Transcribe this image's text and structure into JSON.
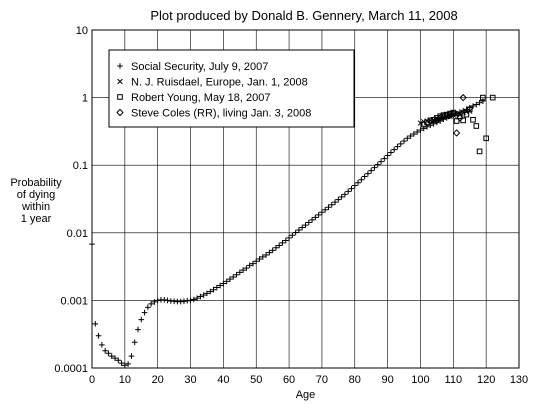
{
  "chart_data": {
    "type": "scatter",
    "title": "Plot produced by Donald B. Gennery, March 11, 2008",
    "xlabel": "Age",
    "ylabel": [
      "Probability",
      "of dying",
      "within",
      "1 year"
    ],
    "xlim": [
      0,
      130
    ],
    "ylim": [
      0.0001,
      10
    ],
    "yscale": "log",
    "x_ticks": [
      0,
      10,
      20,
      30,
      40,
      50,
      60,
      70,
      80,
      90,
      100,
      110,
      120,
      130
    ],
    "y_ticks": [
      {
        "value": 0.0001,
        "label": "0.0001"
      },
      {
        "value": 0.001,
        "label": "0.001"
      },
      {
        "value": 0.01,
        "label": "0.01"
      },
      {
        "value": 0.1,
        "label": "0.1"
      },
      {
        "value": 1,
        "label": "1"
      },
      {
        "value": 10,
        "label": "10"
      }
    ],
    "grid": true,
    "legend_position": "top-left",
    "series": [
      {
        "name": "Social Security, July 9, 2007",
        "marker": "plus",
        "x": [
          0,
          1,
          2,
          3,
          4,
          5,
          6,
          7,
          8,
          9,
          10,
          11,
          12,
          13,
          14,
          15,
          16,
          17,
          18,
          19,
          20,
          21,
          22,
          23,
          24,
          25,
          26,
          27,
          28,
          29,
          30,
          31,
          32,
          33,
          34,
          35,
          36,
          37,
          38,
          39,
          40,
          41,
          42,
          43,
          44,
          45,
          46,
          47,
          48,
          49,
          50,
          51,
          52,
          53,
          54,
          55,
          56,
          57,
          58,
          59,
          60,
          61,
          62,
          63,
          64,
          65,
          66,
          67,
          68,
          69,
          70,
          71,
          72,
          73,
          74,
          75,
          76,
          77,
          78,
          79,
          80,
          81,
          82,
          83,
          84,
          85,
          86,
          87,
          88,
          89,
          90,
          91,
          92,
          93,
          94,
          95,
          96,
          97,
          98,
          99,
          100,
          101,
          102,
          103,
          104,
          105,
          106,
          107,
          108,
          109,
          110,
          111,
          112,
          113,
          114,
          115,
          116,
          117,
          118,
          119
        ],
        "y": [
          0.0068,
          0.00045,
          0.0003,
          0.00022,
          0.00018,
          0.000165,
          0.00015,
          0.00014,
          0.00013,
          0.000118,
          0.00011,
          0.000115,
          0.00015,
          0.00024,
          0.00037,
          0.00052,
          0.00066,
          0.00079,
          0.00089,
          0.00095,
          0.001,
          0.00102,
          0.00102,
          0.001,
          0.00098,
          0.00097,
          0.00096,
          0.00096,
          0.00097,
          0.00099,
          0.001,
          0.00103,
          0.00108,
          0.00114,
          0.0012,
          0.00127,
          0.00135,
          0.00144,
          0.00155,
          0.00166,
          0.00178,
          0.00191,
          0.00206,
          0.00222,
          0.0024,
          0.0026,
          0.0028,
          0.003,
          0.0033,
          0.0035,
          0.0038,
          0.0041,
          0.0044,
          0.0047,
          0.0051,
          0.0055,
          0.006,
          0.0065,
          0.0071,
          0.0077,
          0.0084,
          0.0092,
          0.0101,
          0.011,
          0.012,
          0.013,
          0.0142,
          0.0155,
          0.0169,
          0.0184,
          0.0201,
          0.0219,
          0.0239,
          0.026,
          0.0284,
          0.031,
          0.034,
          0.037,
          0.041,
          0.045,
          0.05,
          0.055,
          0.061,
          0.068,
          0.075,
          0.083,
          0.092,
          0.102,
          0.113,
          0.125,
          0.139,
          0.154,
          0.17,
          0.188,
          0.207,
          0.228,
          0.25,
          0.27,
          0.29,
          0.31,
          0.33,
          0.35,
          0.37,
          0.39,
          0.41,
          0.43,
          0.45,
          0.48,
          0.5,
          0.53,
          0.55,
          0.58,
          0.61,
          0.64,
          0.67,
          0.71,
          0.75,
          0.79,
          0.84,
          0.89
        ]
      },
      {
        "name": "N. J. Ruisdael, Europe, Jan. 1, 2008",
        "marker": "x",
        "x": [
          100,
          101,
          102,
          103,
          104,
          105,
          106,
          107,
          108,
          109,
          110,
          111,
          112,
          113,
          114,
          115
        ],
        "y": [
          0.42,
          0.44,
          0.45,
          0.46,
          0.47,
          0.49,
          0.5,
          0.51,
          0.52,
          0.53,
          0.55,
          0.57,
          0.58,
          0.6,
          0.62,
          0.63
        ]
      },
      {
        "name": "Robert Young, May 18, 2007",
        "marker": "square",
        "x": [
          101,
          102,
          103,
          104,
          105,
          106,
          107,
          108,
          109,
          110,
          111,
          112,
          113,
          114,
          115,
          116,
          117,
          118,
          119,
          120,
          122
        ],
        "y": [
          0.4,
          0.43,
          0.46,
          0.47,
          0.5,
          0.53,
          0.55,
          0.56,
          0.58,
          0.6,
          0.45,
          0.53,
          0.46,
          0.56,
          0.67,
          0.47,
          0.38,
          0.16,
          1.0,
          0.25,
          1.0
        ]
      },
      {
        "name": "Steve Coles (RR), living Jan. 3, 2008",
        "marker": "diamond",
        "x": [
          105,
          106,
          107,
          108,
          109,
          110,
          111,
          112,
          113
        ],
        "y": [
          0.46,
          0.5,
          0.52,
          0.54,
          0.56,
          0.58,
          0.3,
          0.5,
          1.0
        ]
      }
    ]
  }
}
